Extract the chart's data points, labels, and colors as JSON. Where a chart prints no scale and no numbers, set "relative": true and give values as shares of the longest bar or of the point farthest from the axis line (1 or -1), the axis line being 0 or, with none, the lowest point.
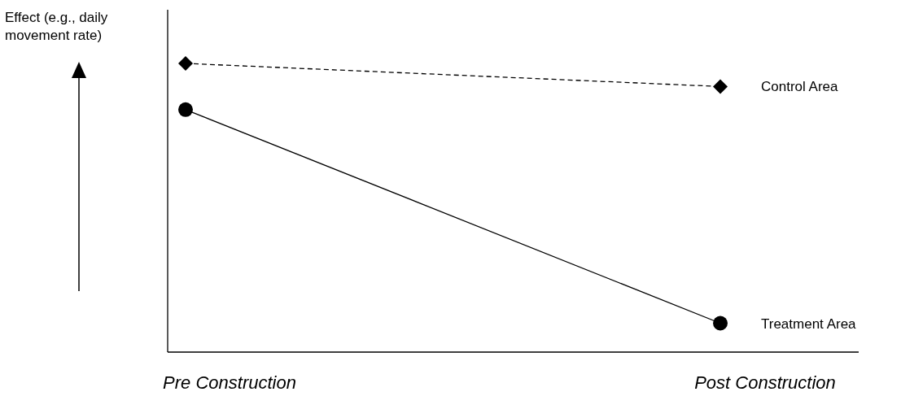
{
  "chart_data": {
    "type": "line",
    "relative": true,
    "ylabel": "Effect (e.g., daily movement rate)",
    "categories": [
      "Pre Construction",
      "Post Construction"
    ],
    "legend": false,
    "series": [
      {
        "name": "Control Area",
        "color": "#000000",
        "values": [
          1,
          0.92
        ],
        "marker": "diamond",
        "line_style": "dashed"
      },
      {
        "name": "Treatment Area",
        "color": "#000000",
        "values": [
          0.84,
          0.1
        ],
        "marker": "circle",
        "line_style": "solid"
      }
    ]
  }
}
